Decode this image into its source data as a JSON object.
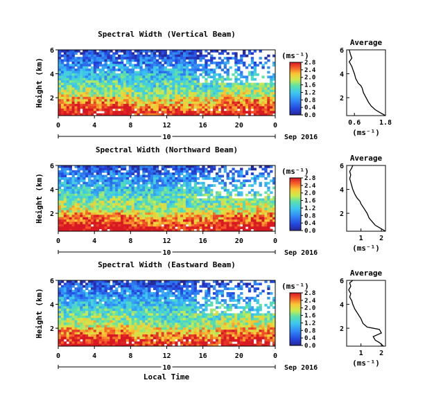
{
  "figure": {
    "xlabel": "Local Time",
    "date_label": "Sep 2016",
    "units_label": "(ms⁻¹)",
    "average_title": "Average",
    "height_label": "Height (km)"
  },
  "chart_data": [
    {
      "type": "heatmap",
      "title": "Spectral Width (Vertical Beam)",
      "xlabel": "Local Time",
      "ylabel": "Height (km)",
      "x_ticks": [
        "0",
        "4",
        "8",
        "12",
        "16",
        "20",
        "0"
      ],
      "x_range_hours": [
        0,
        24
      ],
      "day_label": "10",
      "date_label": "Sep 2016",
      "y_ticks": [
        "2",
        "4",
        "6"
      ],
      "ylim": [
        0.5,
        6
      ],
      "colorbar": {
        "label": "(ms⁻¹)",
        "range": [
          0,
          2.8
        ],
        "ticks": [
          "0.0",
          "0.4",
          "0.8",
          "1.2",
          "1.6",
          "2.0",
          "2.4",
          "2.8"
        ]
      },
      "profile": {
        "title": "Average",
        "xlabel": "(ms⁻¹)",
        "xlim": [
          0.3,
          1.8
        ],
        "x_ticks": [
          "0.6",
          "1.8"
        ],
        "y_ticks": [
          "2",
          "4",
          "6"
        ],
        "height_km": [
          0.5,
          0.8,
          1.0,
          1.3,
          1.6,
          2.0,
          2.4,
          2.8,
          3.0,
          3.2,
          3.6,
          4.0,
          4.3,
          4.6,
          4.8,
          5.0,
          5.3,
          5.6,
          6.0
        ],
        "width": [
          1.8,
          1.55,
          1.4,
          1.25,
          1.15,
          1.05,
          0.95,
          0.9,
          0.85,
          0.75,
          0.65,
          0.6,
          0.55,
          0.5,
          0.45,
          0.4,
          0.5,
          0.45,
          0.4
        ]
      }
    },
    {
      "type": "heatmap",
      "title": "Spectral Width (Northward Beam)",
      "xlabel": "Local Time",
      "ylabel": "Height (km)",
      "x_ticks": [
        "0",
        "4",
        "8",
        "12",
        "16",
        "20",
        "0"
      ],
      "x_range_hours": [
        0,
        24
      ],
      "day_label": "10",
      "date_label": "Sep 2016",
      "y_ticks": [
        "2",
        "4",
        "6"
      ],
      "ylim": [
        0.5,
        6
      ],
      "colorbar": {
        "label": "(ms⁻¹)",
        "range": [
          0,
          2.8
        ],
        "ticks": [
          "0.0",
          "0.4",
          "0.8",
          "1.2",
          "1.6",
          "2.0",
          "2.4",
          "2.8"
        ]
      },
      "profile": {
        "title": "Average",
        "xlabel": "(ms⁻¹)",
        "xlim": [
          0.3,
          2.2
        ],
        "x_ticks": [
          "1",
          "2"
        ],
        "y_ticks": [
          "2",
          "4",
          "6"
        ],
        "height_km": [
          0.5,
          0.8,
          1.0,
          1.3,
          1.6,
          2.0,
          2.4,
          2.8,
          3.0,
          3.3,
          3.6,
          4.0,
          4.3,
          4.6,
          4.9,
          5.2,
          5.5,
          5.8,
          6.0
        ],
        "width": [
          2.2,
          1.9,
          1.7,
          1.55,
          1.4,
          1.3,
          1.15,
          1.0,
          0.95,
          0.8,
          0.7,
          0.6,
          0.55,
          0.5,
          0.45,
          0.5,
          0.45,
          0.55,
          0.6
        ]
      }
    },
    {
      "type": "heatmap",
      "title": "Spectral Width (Eastward Beam)",
      "xlabel": "Local Time",
      "ylabel": "Height (km)",
      "x_ticks": [
        "0",
        "4",
        "8",
        "12",
        "16",
        "20",
        "0"
      ],
      "x_range_hours": [
        0,
        24
      ],
      "day_label": "10",
      "date_label": "Sep 2016",
      "y_ticks": [
        "2",
        "4",
        "6"
      ],
      "ylim": [
        0.5,
        6
      ],
      "colorbar": {
        "label": "(ms⁻¹)",
        "range": [
          0,
          2.8
        ],
        "ticks": [
          "0.0",
          "0.4",
          "0.8",
          "1.2",
          "1.6",
          "2.0",
          "2.4",
          "2.8"
        ]
      },
      "profile": {
        "title": "Average",
        "xlabel": "(ms⁻¹)",
        "xlim": [
          0.3,
          2.2
        ],
        "x_ticks": [
          "1",
          "2"
        ],
        "y_ticks": [
          "2",
          "4",
          "6"
        ],
        "height_km": [
          0.5,
          0.8,
          1.0,
          1.3,
          1.6,
          1.9,
          2.1,
          2.4,
          2.8,
          3.2,
          3.6,
          4.0,
          4.3,
          4.6,
          4.9,
          5.2,
          5.5,
          5.8,
          6.0
        ],
        "width": [
          2.1,
          1.9,
          1.7,
          1.6,
          2.0,
          1.9,
          1.3,
          1.1,
          1.0,
          0.85,
          0.7,
          0.6,
          0.55,
          0.45,
          0.5,
          0.4,
          0.5,
          0.45,
          0.6
        ]
      }
    }
  ]
}
